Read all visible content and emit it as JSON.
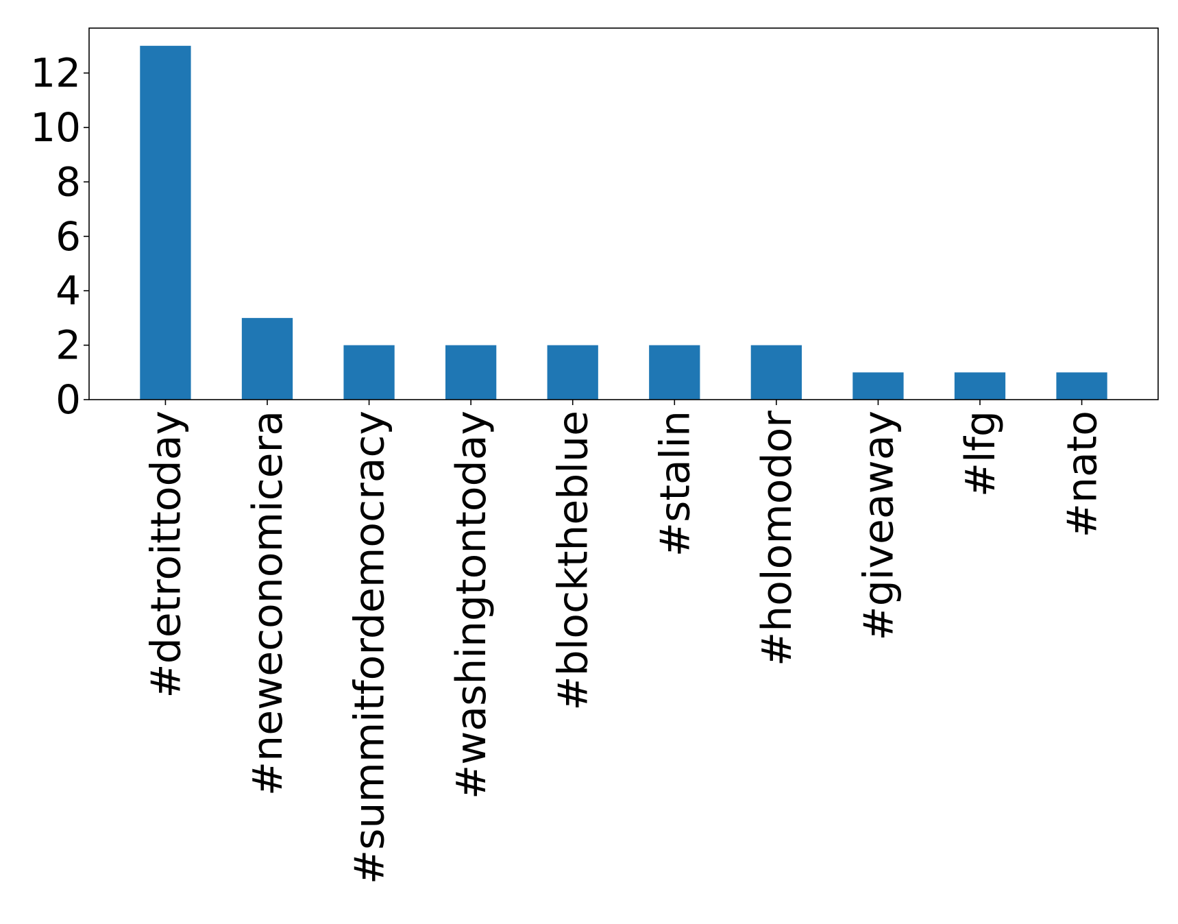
{
  "chart_data": {
    "type": "bar",
    "title": "",
    "xlabel": "",
    "ylabel": "",
    "categories": [
      "#detroittoday",
      "#neweconomicera",
      "#summitfordemocracy",
      "#washingtontoday",
      "#blocktheblue",
      "#stalin",
      "#holomodor",
      "#giveaway",
      "#lfg",
      "#nato"
    ],
    "values": [
      13,
      3,
      2,
      2,
      2,
      2,
      2,
      1,
      1,
      1
    ],
    "ylim": [
      0,
      13.65
    ],
    "yticks": [
      0,
      2,
      4,
      6,
      8,
      10,
      12
    ],
    "grid": false,
    "legend": "none",
    "bar_color": "#1f77b4",
    "axis_color": "#000000"
  }
}
